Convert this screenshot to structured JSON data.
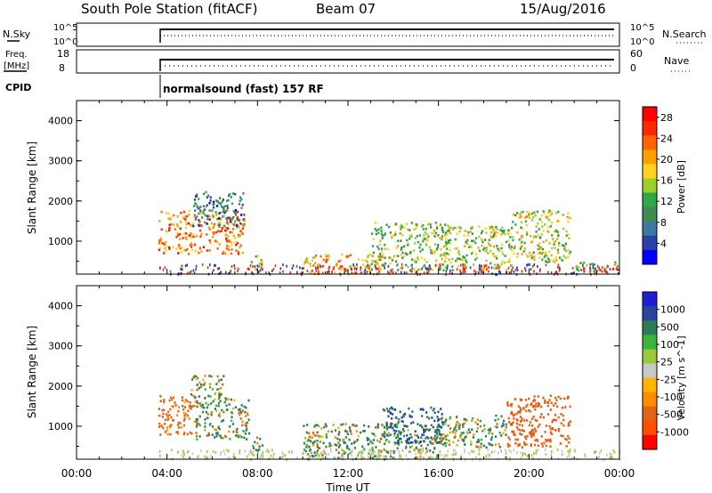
{
  "header": {
    "station": "South Pole Station (fitACF)",
    "beam": "Beam 07",
    "date": "15/Aug/2016"
  },
  "strips": {
    "nsky_label": "N.Sky",
    "nsky_ticks": [
      "10^5",
      "10^0"
    ],
    "nsearch_label": "N.Search",
    "nsearch_ticks": [
      "10^5",
      "10^0"
    ],
    "freq_label_line1": "Freq.",
    "freq_label_line2": "[MHz]",
    "freq_ticks": [
      "18",
      "8"
    ],
    "nave_label": "Nave",
    "nave_ticks": [
      "60",
      "0"
    ],
    "cpid_label": "CPID",
    "cpid_text": "normalsound (fast) 157 RF"
  },
  "colors": {
    "power": [
      "#0000ff",
      "#2840a8",
      "#3c78a0",
      "#3d8c50",
      "#2fa848",
      "#9ccf2c",
      "#ffd21e",
      "#ffa000",
      "#ff6400",
      "#ff2800",
      "#ff0000"
    ],
    "velocity": [
      "#ff0000",
      "#ff5000",
      "#e06414",
      "#ff8c00",
      "#ffb400",
      "#c8c8c8",
      "#9aca3c",
      "#3cb43c",
      "#2e7d5a",
      "#2846a0",
      "#1e1ed2"
    ]
  },
  "chart_data": [
    {
      "type": "heatmap",
      "name": "power",
      "ylabel": "Slant Range [km]",
      "xlabel": "Time UT",
      "x_ticks": [
        "00:00",
        "04:00",
        "08:00",
        "12:00",
        "16:00",
        "20:00",
        "00:00"
      ],
      "xlim": [
        0,
        24
      ],
      "y_ticks": [
        "1000",
        "2000",
        "3000",
        "4000"
      ],
      "ylim": [
        180,
        4500
      ],
      "colorbar": {
        "label": "Power [dB]",
        "ticks": [
          "4",
          "8",
          "12",
          "16",
          "20",
          "24",
          "28"
        ],
        "range": [
          0,
          30
        ]
      },
      "patches": [
        {
          "t0": 3.6,
          "t1": 7.4,
          "r0": 700,
          "r1": 1800,
          "value": 22
        },
        {
          "t0": 5.1,
          "t1": 7.4,
          "r0": 1400,
          "r1": 2250,
          "value": 8
        },
        {
          "t0": 7.7,
          "t1": 8.2,
          "r0": 300,
          "r1": 700,
          "value": 18
        },
        {
          "t0": 10.0,
          "t1": 13.5,
          "r0": 200,
          "r1": 700,
          "value": 20
        },
        {
          "t0": 13.0,
          "t1": 16.5,
          "r0": 300,
          "r1": 1500,
          "value": 14
        },
        {
          "t0": 16.0,
          "t1": 19.2,
          "r0": 300,
          "r1": 1400,
          "value": 15
        },
        {
          "t0": 19.2,
          "t1": 21.8,
          "r0": 500,
          "r1": 1800,
          "value": 16
        },
        {
          "t0": 22.0,
          "t1": 24.0,
          "r0": 200,
          "r1": 500,
          "value": 10
        }
      ]
    },
    {
      "type": "heatmap",
      "name": "velocity",
      "ylabel": "Slant Range [km]",
      "xlabel": "Time UT",
      "x_ticks": [
        "00:00",
        "04:00",
        "08:00",
        "12:00",
        "16:00",
        "20:00",
        "00:00"
      ],
      "xlim": [
        0,
        24
      ],
      "y_ticks": [
        "1000",
        "2000",
        "3000",
        "4000"
      ],
      "ylim": [
        180,
        4500
      ],
      "colorbar": {
        "label": "Velocity [m s^-1]",
        "ticks": [
          "1000",
          "500",
          "100",
          "25",
          "-25",
          "-100",
          "-500",
          "-1000"
        ]
      },
      "patches": [
        {
          "t0": 3.6,
          "t1": 5.2,
          "r0": 800,
          "r1": 1800,
          "value": -300
        },
        {
          "t0": 5.2,
          "t1": 7.6,
          "r0": 700,
          "r1": 1800,
          "value": 100
        },
        {
          "t0": 5.0,
          "t1": 6.5,
          "r0": 1800,
          "r1": 2300,
          "value": 0
        },
        {
          "t0": 7.7,
          "t1": 8.2,
          "r0": 400,
          "r1": 800,
          "value": 150
        },
        {
          "t0": 10.0,
          "t1": 16.0,
          "r0": 200,
          "r1": 1100,
          "value": 150
        },
        {
          "t0": 13.5,
          "t1": 16.2,
          "r0": 600,
          "r1": 1500,
          "value": 600
        },
        {
          "t0": 16.0,
          "t1": 19.0,
          "r0": 500,
          "r1": 1300,
          "value": 120
        },
        {
          "t0": 19.0,
          "t1": 21.8,
          "r0": 500,
          "r1": 1800,
          "value": -400
        }
      ]
    }
  ]
}
